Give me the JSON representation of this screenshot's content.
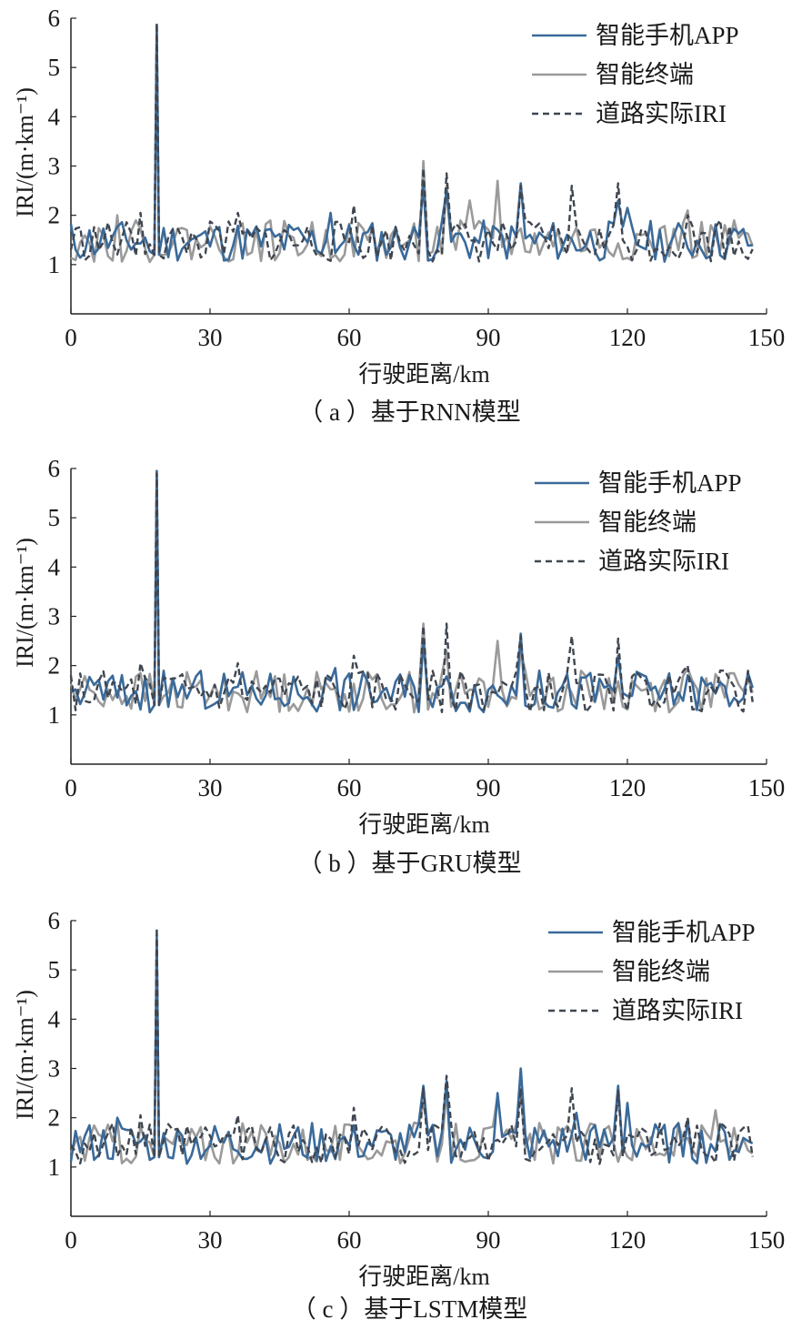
{
  "colors": {
    "app": "#3a6a9a",
    "terminal": "#9a9a9a",
    "actual": "#3f4650"
  },
  "chart_data": [
    {
      "type": "line",
      "caption": "（ a ）基于RNN模型",
      "xlabel": "行驶距离/km",
      "ylabel": "IRI/(m·km⁻¹)",
      "xlim": [
        0,
        150
      ],
      "ylim": [
        0,
        6
      ],
      "xticks": [
        0,
        30,
        60,
        90,
        120,
        150
      ],
      "yticks": [
        1,
        2,
        3,
        4,
        5,
        6
      ],
      "legend_position": "top-right",
      "legend": [
        "智能手机APP",
        "智能终端",
        "道路实际IRI"
      ],
      "series": [
        {
          "name": "智能手机APP",
          "color": "#3a6a9a",
          "style": "solid",
          "seed": 11,
          "points": [
            [
              18.5,
              5.85
            ],
            [
              76,
              2.6
            ],
            [
              81,
              2.5
            ],
            [
              97,
              2.65
            ],
            [
              118,
              2.3
            ],
            [
              120,
              2.15
            ],
            [
              56,
              2.05
            ],
            [
              31,
              1.7
            ]
          ]
        },
        {
          "name": "智能终端",
          "color": "#9a9a9a",
          "style": "solid",
          "seed": 22,
          "points": [
            [
              18.5,
              5.6
            ],
            [
              76,
              3.1
            ],
            [
              81,
              2.6
            ],
            [
              86,
              2.3
            ],
            [
              92,
              2.7
            ],
            [
              133,
              2.1
            ],
            [
              10,
              2.0
            ]
          ]
        },
        {
          "name": "道路实际IRI",
          "color": "#3f4650",
          "style": "dashed",
          "seed": 33,
          "points": [
            [
              18.5,
              5.9
            ],
            [
              76,
              2.95
            ],
            [
              81,
              2.85
            ],
            [
              97,
              2.6
            ],
            [
              108,
              2.6
            ],
            [
              118,
              2.65
            ],
            [
              61,
              2.2
            ],
            [
              36,
              2.05
            ],
            [
              15,
              2.05
            ],
            [
              133,
              2.0
            ],
            [
              140,
              1.9
            ]
          ]
        }
      ]
    },
    {
      "type": "line",
      "caption": "（ b ）基于GRU模型",
      "xlabel": "行驶距离/km",
      "ylabel": "IRI/(m·km⁻¹)",
      "xlim": [
        0,
        150
      ],
      "ylim": [
        0,
        6
      ],
      "xticks": [
        0,
        30,
        60,
        90,
        120,
        150
      ],
      "yticks": [
        1,
        2,
        3,
        4,
        5,
        6
      ],
      "legend_position": "top-right",
      "legend": [
        "智能手机APP",
        "智能终端",
        "道路实际IRI"
      ],
      "series": [
        {
          "name": "智能手机APP",
          "color": "#3a6a9a",
          "style": "solid",
          "seed": 44,
          "points": [
            [
              18.5,
              5.95
            ],
            [
              76,
              2.5
            ],
            [
              97,
              2.65
            ],
            [
              118,
              2.2
            ],
            [
              57,
              1.95
            ],
            [
              147,
              1.55
            ]
          ]
        },
        {
          "name": "智能终端",
          "color": "#9a9a9a",
          "style": "solid",
          "seed": 55,
          "points": [
            [
              18.5,
              5.8
            ],
            [
              76,
              2.85
            ],
            [
              81,
              2.3
            ],
            [
              92,
              2.5
            ],
            [
              97,
              2.3
            ],
            [
              133,
              1.95
            ]
          ]
        },
        {
          "name": "道路实际IRI",
          "color": "#3f4650",
          "style": "dashed",
          "seed": 66,
          "points": [
            [
              18.5,
              5.9
            ],
            [
              76,
              2.8
            ],
            [
              81,
              2.85
            ],
            [
              97,
              2.6
            ],
            [
              108,
              2.6
            ],
            [
              118,
              2.55
            ],
            [
              61,
              2.2
            ],
            [
              36,
              2.05
            ],
            [
              15,
              2.05
            ],
            [
              133,
              2.0
            ],
            [
              140,
              1.9
            ]
          ]
        }
      ]
    },
    {
      "type": "line",
      "caption": "（ c ）基于LSTM模型",
      "xlabel": "行驶距离/km",
      "ylabel": "IRI/(m·km⁻¹)",
      "xlim": [
        0,
        150
      ],
      "ylim": [
        0,
        6
      ],
      "xticks": [
        0,
        30,
        60,
        90,
        120,
        150
      ],
      "yticks": [
        1,
        2,
        3,
        4,
        5,
        6
      ],
      "legend_position": "top-right",
      "legend": [
        "智能手机APP",
        "智能终端",
        "道路实际IRI"
      ],
      "series": [
        {
          "name": "智能手机APP",
          "color": "#3a6a9a",
          "style": "solid",
          "seed": 77,
          "points": [
            [
              18.5,
              5.7
            ],
            [
              76,
              2.65
            ],
            [
              81,
              2.75
            ],
            [
              92,
              2.5
            ],
            [
              97,
              3.0
            ],
            [
              109,
              2.1
            ],
            [
              118,
              2.65
            ],
            [
              120,
              2.3
            ],
            [
              133,
              1.95
            ],
            [
              10,
              2.0
            ]
          ]
        },
        {
          "name": "智能终端",
          "color": "#9a9a9a",
          "style": "solid",
          "seed": 88,
          "points": [
            [
              18.5,
              5.6
            ],
            [
              76,
              2.3
            ],
            [
              81,
              2.55
            ],
            [
              92,
              2.45
            ],
            [
              97,
              2.5
            ],
            [
              139,
              2.15
            ],
            [
              10,
              1.95
            ]
          ]
        },
        {
          "name": "道路实际IRI",
          "color": "#3f4650",
          "style": "dashed",
          "seed": 99,
          "points": [
            [
              18.5,
              5.85
            ],
            [
              76,
              2.6
            ],
            [
              81,
              2.85
            ],
            [
              97,
              2.6
            ],
            [
              108,
              2.6
            ],
            [
              118,
              2.55
            ],
            [
              61,
              2.2
            ],
            [
              36,
              2.05
            ],
            [
              15,
              2.05
            ],
            [
              133,
              2.0
            ],
            [
              140,
              1.9
            ]
          ]
        }
      ]
    }
  ]
}
